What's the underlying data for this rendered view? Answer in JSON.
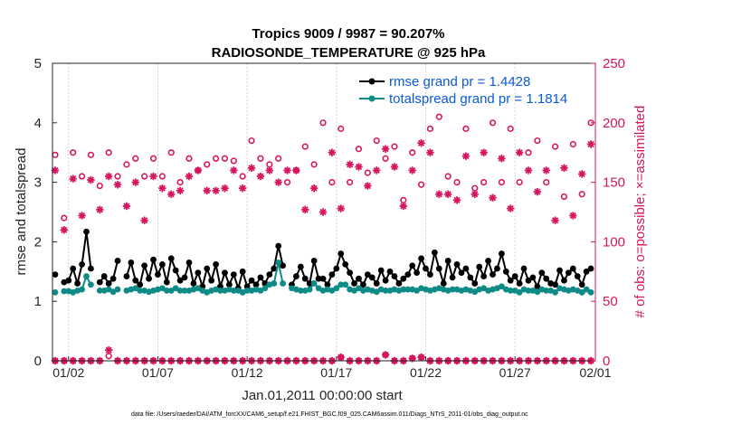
{
  "colors": {
    "rmse": "#000000",
    "spread": "#0e8a87",
    "obs": "#d6155e",
    "legend_text": "#0b5ad6",
    "axis": "#262626"
  },
  "chart_data": {
    "type": "line",
    "title_line1": "Tropics 9009 / 9987 = 90.207%",
    "title_line2": "RADIOSONDE_TEMPERATURE @ 925 hPa",
    "xlabel": "Jan.01,2011 00:00:00 start",
    "ylabel_left": "rmse and totalspread",
    "ylabel_right": "# of obs: o=possible; ×=assimilated",
    "footnote": "data file: /Users/raeder/DAI/ATM_forcXX/CAM6_setup/f.e21.FHIST_BGC.f09_025.CAM6assim.011/Diags_NTrS_2011-01/obs_diag_output.nc",
    "xlim": [
      0.6,
      31.0
    ],
    "ylim_left": [
      0,
      5
    ],
    "ylim_right": [
      0,
      250
    ],
    "x_ticks": [
      {
        "x": 1.5,
        "label": "01/02"
      },
      {
        "x": 6.5,
        "label": "01/07"
      },
      {
        "x": 11.5,
        "label": "01/12"
      },
      {
        "x": 16.5,
        "label": "01/17"
      },
      {
        "x": 21.5,
        "label": "01/22"
      },
      {
        "x": 26.5,
        "label": "01/27"
      },
      {
        "x": 31.0,
        "label": "02/01"
      }
    ],
    "y_ticks_left": [
      "0",
      "1",
      "2",
      "3",
      "4",
      "5"
    ],
    "y_ticks_right": [
      "0",
      "50",
      "100",
      "150",
      "200",
      "250"
    ],
    "legend": {
      "position": "top-right",
      "entries": [
        "rmse grand pr = 1.4428",
        "totalspread grand pr = 1.1814"
      ]
    },
    "x": [
      0.75,
      1.0,
      1.25,
      1.5,
      1.75,
      2.0,
      2.25,
      2.5,
      2.75,
      3.0,
      3.25,
      3.5,
      3.75,
      4.0,
      4.25,
      4.5,
      4.75,
      5.0,
      5.25,
      5.5,
      5.75,
      6.0,
      6.25,
      6.5,
      6.75,
      7.0,
      7.25,
      7.5,
      7.75,
      8.0,
      8.25,
      8.5,
      8.75,
      9.0,
      9.25,
      9.5,
      9.75,
      10.0,
      10.25,
      10.5,
      10.75,
      11.0,
      11.25,
      11.5,
      11.75,
      12.0,
      12.25,
      12.5,
      12.75,
      13.0,
      13.25,
      13.5,
      13.75,
      14.0,
      14.25,
      14.5,
      14.75,
      15.0,
      15.25,
      15.5,
      15.75,
      16.0,
      16.25,
      16.5,
      16.75,
      17.0,
      17.25,
      17.5,
      17.75,
      18.0,
      18.25,
      18.5,
      18.75,
      19.0,
      19.25,
      19.5,
      19.75,
      20.0,
      20.25,
      20.5,
      20.75,
      21.0,
      21.25,
      21.5,
      21.75,
      22.0,
      22.25,
      22.5,
      22.75,
      23.0,
      23.25,
      23.5,
      23.75,
      24.0,
      24.25,
      24.5,
      24.75,
      25.0,
      25.25,
      25.5,
      25.75,
      26.0,
      26.25,
      26.5,
      26.75,
      27.0,
      27.25,
      27.5,
      27.75,
      28.0,
      28.25,
      28.5,
      28.75,
      29.0,
      29.25,
      29.5,
      29.75,
      30.0,
      30.25,
      30.5,
      30.75
    ],
    "series": [
      {
        "name": "rmse",
        "values": [
          1.45,
          null,
          1.32,
          1.35,
          1.55,
          1.3,
          1.62,
          2.17,
          1.55,
          null,
          1.32,
          1.42,
          1.3,
          1.38,
          1.68,
          null,
          1.42,
          1.65,
          1.35,
          1.28,
          1.6,
          1.38,
          1.7,
          1.45,
          1.62,
          1.32,
          1.72,
          1.52,
          1.35,
          1.4,
          1.65,
          1.3,
          1.48,
          1.25,
          1.55,
          1.35,
          1.62,
          1.25,
          1.48,
          1.28,
          1.45,
          1.22,
          1.5,
          1.25,
          1.35,
          1.28,
          1.4,
          1.3,
          1.45,
          1.55,
          1.93,
          1.6,
          null,
          1.28,
          1.42,
          1.58,
          1.38,
          1.3,
          1.68,
          1.38,
          1.38,
          1.28,
          1.45,
          1.55,
          1.8,
          1.62,
          1.48,
          1.3,
          1.38,
          1.28,
          1.45,
          1.4,
          1.3,
          1.52,
          1.35,
          1.5,
          1.42,
          1.3,
          1.38,
          1.45,
          1.6,
          1.48,
          1.72,
          1.55,
          1.45,
          1.82,
          1.55,
          1.3,
          1.68,
          1.4,
          1.62,
          1.48,
          1.55,
          1.4,
          1.3,
          1.58,
          1.42,
          1.68,
          1.45,
          1.55,
          1.8,
          1.5,
          1.35,
          1.42,
          1.3,
          1.55,
          1.35,
          1.4,
          1.25,
          1.48,
          1.38,
          1.3,
          1.28,
          1.52,
          1.35,
          1.48,
          1.55,
          1.42,
          1.28,
          1.5,
          1.55
        ]
      },
      {
        "name": "totalspread",
        "values": [
          1.15,
          null,
          1.17,
          1.17,
          1.15,
          1.18,
          1.2,
          1.42,
          1.28,
          null,
          1.18,
          1.18,
          1.2,
          1.16,
          1.2,
          null,
          1.18,
          1.2,
          1.22,
          1.18,
          1.18,
          1.16,
          1.18,
          1.2,
          1.22,
          1.18,
          1.18,
          1.22,
          1.18,
          1.18,
          1.18,
          1.2,
          1.22,
          1.18,
          1.15,
          1.18,
          1.2,
          1.18,
          1.18,
          1.2,
          1.18,
          1.18,
          1.15,
          1.18,
          1.18,
          1.2,
          1.18,
          1.22,
          1.28,
          1.3,
          1.65,
          1.3,
          null,
          1.22,
          1.2,
          1.18,
          1.18,
          1.2,
          1.3,
          1.22,
          1.18,
          1.2,
          1.18,
          1.22,
          1.28,
          1.28,
          1.2,
          1.18,
          1.22,
          1.18,
          1.2,
          1.18,
          1.16,
          1.2,
          1.18,
          1.18,
          1.2,
          1.18,
          1.2,
          1.2,
          1.2,
          1.18,
          1.22,
          1.2,
          1.18,
          1.2,
          1.22,
          1.2,
          1.18,
          1.2,
          1.2,
          1.18,
          1.2,
          1.18,
          1.16,
          1.2,
          1.22,
          1.18,
          1.2,
          1.22,
          1.25,
          1.2,
          1.18,
          1.18,
          1.15,
          1.2,
          1.18,
          1.18,
          1.16,
          1.2,
          1.18,
          1.18,
          1.15,
          1.22,
          1.2,
          1.18,
          1.2,
          1.18,
          1.15,
          1.2,
          1.15
        ]
      }
    ],
    "obs_possible": [
      [
        0.75,
        173
      ],
      [
        1.25,
        120
      ],
      [
        1.75,
        175
      ],
      [
        2.25,
        155
      ],
      [
        2.75,
        173
      ],
      [
        3.25,
        147
      ],
      [
        3.75,
        175
      ],
      [
        4.25,
        155
      ],
      [
        4.75,
        165
      ],
      [
        5.25,
        170
      ],
      [
        5.75,
        155
      ],
      [
        6.25,
        170
      ],
      [
        6.75,
        155
      ],
      [
        7.25,
        175
      ],
      [
        7.75,
        150
      ],
      [
        8.25,
        170
      ],
      [
        8.75,
        160
      ],
      [
        9.25,
        165
      ],
      [
        9.75,
        170
      ],
      [
        10.25,
        170
      ],
      [
        10.75,
        168
      ],
      [
        11.25,
        155
      ],
      [
        11.75,
        185
      ],
      [
        12.25,
        170
      ],
      [
        12.75,
        165
      ],
      [
        13.25,
        170
      ],
      [
        13.75,
        150
      ],
      [
        14.25,
        160
      ],
      [
        14.75,
        180
      ],
      [
        15.25,
        165
      ],
      [
        15.75,
        200
      ],
      [
        16.25,
        150
      ],
      [
        16.75,
        195
      ],
      [
        17.25,
        150
      ],
      [
        17.75,
        178
      ],
      [
        18.25,
        158
      ],
      [
        18.75,
        185
      ],
      [
        19.25,
        170
      ],
      [
        19.75,
        180
      ],
      [
        20.25,
        135
      ],
      [
        20.75,
        175
      ],
      [
        21.25,
        148
      ],
      [
        21.75,
        195
      ],
      [
        22.25,
        205
      ],
      [
        22.75,
        155
      ],
      [
        23.25,
        150
      ],
      [
        23.75,
        195
      ],
      [
        24.25,
        145
      ],
      [
        24.75,
        150
      ],
      [
        25.25,
        200
      ],
      [
        25.75,
        150
      ],
      [
        26.25,
        195
      ],
      [
        26.75,
        150
      ],
      [
        27.25,
        175
      ],
      [
        27.75,
        185
      ],
      [
        28.25,
        150
      ],
      [
        28.75,
        180
      ],
      [
        29.25,
        138
      ],
      [
        29.75,
        182
      ],
      [
        30.25,
        140
      ],
      [
        30.75,
        200
      ]
    ],
    "obs_assimilated": [
      [
        0.75,
        160
      ],
      [
        1.25,
        110
      ],
      [
        1.75,
        153
      ],
      [
        2.25,
        122
      ],
      [
        2.75,
        152
      ],
      [
        3.25,
        127
      ],
      [
        3.75,
        155
      ],
      [
        4.25,
        148
      ],
      [
        4.75,
        130
      ],
      [
        5.25,
        150
      ],
      [
        5.75,
        118
      ],
      [
        6.25,
        155
      ],
      [
        6.75,
        145
      ],
      [
        7.25,
        140
      ],
      [
        7.75,
        143
      ],
      [
        8.25,
        155
      ],
      [
        8.75,
        160
      ],
      [
        9.25,
        143
      ],
      [
        9.75,
        143
      ],
      [
        10.25,
        145
      ],
      [
        10.75,
        160
      ],
      [
        11.25,
        145
      ],
      [
        11.75,
        162
      ],
      [
        12.25,
        155
      ],
      [
        12.75,
        160
      ],
      [
        13.25,
        150
      ],
      [
        13.75,
        160
      ],
      [
        14.25,
        160
      ],
      [
        14.75,
        127
      ],
      [
        15.25,
        145
      ],
      [
        15.75,
        125
      ],
      [
        16.25,
        175
      ],
      [
        16.75,
        128
      ],
      [
        17.25,
        165
      ],
      [
        17.75,
        163
      ],
      [
        18.25,
        147
      ],
      [
        18.75,
        160
      ],
      [
        19.25,
        178
      ],
      [
        19.75,
        163
      ],
      [
        20.25,
        130
      ],
      [
        20.75,
        160
      ],
      [
        21.25,
        183
      ],
      [
        21.75,
        175
      ],
      [
        22.25,
        140
      ],
      [
        22.75,
        140
      ],
      [
        23.25,
        135
      ],
      [
        23.75,
        172
      ],
      [
        24.25,
        140
      ],
      [
        24.75,
        175
      ],
      [
        25.25,
        137
      ],
      [
        25.75,
        170
      ],
      [
        26.25,
        128
      ],
      [
        26.75,
        175
      ],
      [
        27.25,
        160
      ],
      [
        27.75,
        142
      ],
      [
        28.25,
        160
      ],
      [
        28.75,
        118
      ],
      [
        29.25,
        162
      ],
      [
        29.75,
        122
      ],
      [
        30.25,
        157
      ],
      [
        30.75,
        182
      ]
    ],
    "obs_possible_low": [
      [
        0.75,
        0
      ],
      [
        1.25,
        0
      ],
      [
        1.75,
        0
      ],
      [
        2.25,
        0
      ],
      [
        2.75,
        0
      ],
      [
        3.25,
        0
      ],
      [
        3.75,
        4
      ],
      [
        4.25,
        0
      ],
      [
        4.75,
        0
      ],
      [
        5.25,
        0
      ],
      [
        5.75,
        0
      ],
      [
        6.25,
        0
      ],
      [
        6.75,
        0
      ],
      [
        7.25,
        0
      ],
      [
        7.75,
        0
      ],
      [
        8.25,
        0
      ],
      [
        8.75,
        0
      ],
      [
        9.25,
        0
      ],
      [
        9.75,
        0
      ],
      [
        10.25,
        0
      ],
      [
        10.75,
        0
      ],
      [
        11.25,
        0
      ],
      [
        11.75,
        0
      ],
      [
        12.25,
        0
      ],
      [
        12.75,
        0
      ],
      [
        13.25,
        0
      ],
      [
        13.75,
        0
      ],
      [
        14.25,
        0
      ],
      [
        14.75,
        0
      ],
      [
        15.25,
        0
      ],
      [
        15.75,
        0
      ],
      [
        16.25,
        0
      ],
      [
        16.75,
        3
      ],
      [
        17.25,
        0
      ],
      [
        17.75,
        0
      ],
      [
        18.25,
        0
      ],
      [
        18.75,
        0
      ],
      [
        19.25,
        5
      ],
      [
        19.75,
        0
      ],
      [
        20.25,
        0
      ],
      [
        20.75,
        2
      ],
      [
        21.25,
        3
      ],
      [
        21.75,
        0
      ],
      [
        22.25,
        0
      ],
      [
        22.75,
        0
      ],
      [
        23.25,
        0
      ],
      [
        23.75,
        0
      ],
      [
        24.25,
        0
      ],
      [
        24.75,
        0
      ],
      [
        25.25,
        0
      ],
      [
        25.75,
        0
      ],
      [
        26.25,
        0
      ],
      [
        26.75,
        0
      ],
      [
        27.25,
        0
      ],
      [
        27.75,
        0
      ],
      [
        28.25,
        0
      ],
      [
        28.75,
        0
      ],
      [
        29.25,
        0
      ],
      [
        29.75,
        0
      ],
      [
        30.25,
        0
      ],
      [
        30.75,
        0
      ]
    ],
    "obs_assimilated_low": [
      [
        0.75,
        0
      ],
      [
        1.25,
        0
      ],
      [
        1.75,
        0
      ],
      [
        2.25,
        0
      ],
      [
        2.75,
        0
      ],
      [
        3.25,
        0
      ],
      [
        3.75,
        9
      ],
      [
        4.25,
        0
      ],
      [
        4.75,
        0
      ],
      [
        5.25,
        0
      ],
      [
        5.75,
        0
      ],
      [
        6.25,
        0
      ],
      [
        6.75,
        0
      ],
      [
        7.25,
        0
      ],
      [
        7.75,
        0
      ],
      [
        8.25,
        0
      ],
      [
        8.75,
        0
      ],
      [
        9.25,
        0
      ],
      [
        9.75,
        0
      ],
      [
        10.25,
        0
      ],
      [
        10.75,
        0
      ],
      [
        11.25,
        0
      ],
      [
        11.75,
        0
      ],
      [
        12.25,
        0
      ],
      [
        12.75,
        0
      ],
      [
        13.25,
        0
      ],
      [
        13.75,
        0
      ],
      [
        14.25,
        0
      ],
      [
        14.75,
        0
      ],
      [
        15.25,
        0
      ],
      [
        15.75,
        0
      ],
      [
        16.25,
        0
      ],
      [
        16.75,
        3
      ],
      [
        17.25,
        0
      ],
      [
        17.75,
        0
      ],
      [
        18.25,
        0
      ],
      [
        18.75,
        0
      ],
      [
        19.25,
        5
      ],
      [
        19.75,
        0
      ],
      [
        20.25,
        0
      ],
      [
        20.75,
        2
      ],
      [
        21.25,
        3
      ],
      [
        21.75,
        0
      ],
      [
        22.25,
        0
      ],
      [
        22.75,
        0
      ],
      [
        23.25,
        0
      ],
      [
        23.75,
        0
      ],
      [
        24.25,
        0
      ],
      [
        24.75,
        0
      ],
      [
        25.25,
        0
      ],
      [
        25.75,
        0
      ],
      [
        26.25,
        0
      ],
      [
        26.75,
        0
      ],
      [
        27.25,
        0
      ],
      [
        27.75,
        0
      ],
      [
        28.25,
        0
      ],
      [
        28.75,
        0
      ],
      [
        29.25,
        0
      ],
      [
        29.75,
        0
      ],
      [
        30.25,
        0
      ],
      [
        30.75,
        0
      ]
    ]
  }
}
